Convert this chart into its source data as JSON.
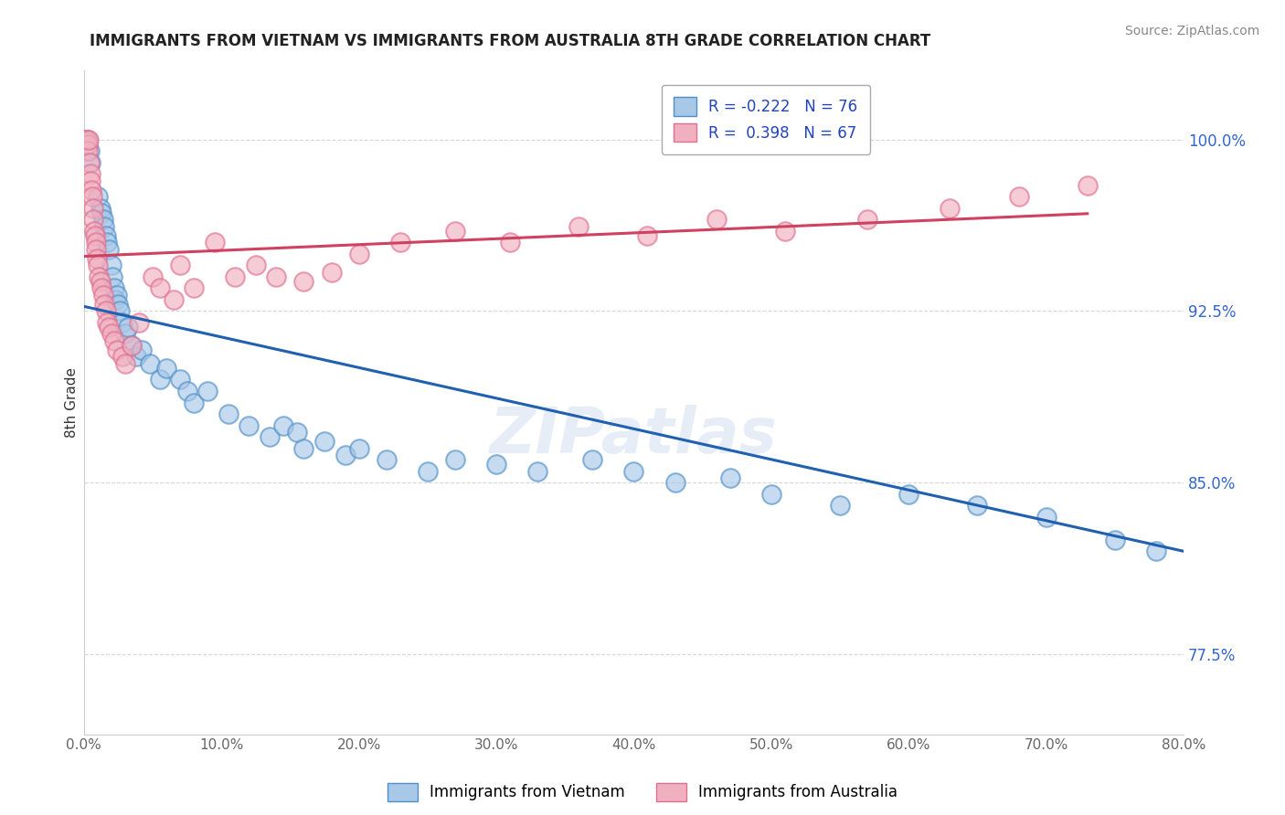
{
  "title": "IMMIGRANTS FROM VIETNAM VS IMMIGRANTS FROM AUSTRALIA 8TH GRADE CORRELATION CHART",
  "source": "Source: ZipAtlas.com",
  "ylabel": "8th Grade",
  "xlim": [
    0.0,
    80.0
  ],
  "ylim": [
    74.0,
    103.0
  ],
  "yticks": [
    77.5,
    85.0,
    92.5,
    100.0
  ],
  "ytick_labels": [
    "77.5%",
    "85.0%",
    "92.5%",
    "100.0%"
  ],
  "xticks": [
    0.0,
    10.0,
    20.0,
    30.0,
    40.0,
    50.0,
    60.0,
    70.0,
    80.0
  ],
  "xtick_labels": [
    "0.0%",
    "10.0%",
    "20.0%",
    "30.0%",
    "40.0%",
    "50.0%",
    "60.0%",
    "70.0%",
    "80.0%"
  ],
  "color_vietnam": "#a8c8e8",
  "color_australia": "#f0b0c0",
  "color_vietnam_edge": "#5090c8",
  "color_australia_edge": "#e07090",
  "color_vietnam_line": "#2060b0",
  "color_australia_line": "#d04060",
  "watermark": "ZIPatlas",
  "vietnam_line_x0": 0.0,
  "vietnam_line_y0": 92.7,
  "vietnam_line_x1": 80.0,
  "vietnam_line_y1": 82.0,
  "vietnam_scatter_x": [
    0.3,
    0.4,
    0.5,
    1.0,
    1.2,
    1.3,
    1.4,
    1.5,
    1.6,
    1.7,
    1.8,
    2.0,
    2.1,
    2.2,
    2.3,
    2.4,
    2.5,
    2.6,
    2.8,
    3.0,
    3.2,
    3.5,
    3.8,
    4.2,
    4.8,
    5.5,
    6.0,
    7.0,
    7.5,
    8.0,
    9.0,
    10.5,
    12.0,
    13.5,
    14.5,
    15.5,
    16.0,
    17.5,
    19.0,
    20.0,
    22.0,
    25.0,
    27.0,
    30.0,
    33.0,
    37.0,
    40.0,
    43.0,
    47.0,
    50.0,
    55.0,
    60.0,
    65.0,
    70.0,
    75.0,
    78.0
  ],
  "vietnam_scatter_y": [
    100.0,
    99.5,
    99.0,
    97.5,
    97.0,
    96.8,
    96.5,
    96.2,
    95.8,
    95.5,
    95.2,
    94.5,
    94.0,
    93.5,
    93.0,
    93.2,
    92.8,
    92.5,
    92.0,
    91.5,
    91.8,
    91.0,
    90.5,
    90.8,
    90.2,
    89.5,
    90.0,
    89.5,
    89.0,
    88.5,
    89.0,
    88.0,
    87.5,
    87.0,
    87.5,
    87.2,
    86.5,
    86.8,
    86.2,
    86.5,
    86.0,
    85.5,
    86.0,
    85.8,
    85.5,
    86.0,
    85.5,
    85.0,
    85.2,
    84.5,
    84.0,
    84.5,
    84.0,
    83.5,
    82.5,
    82.0
  ],
  "australia_scatter_x": [
    0.1,
    0.15,
    0.2,
    0.25,
    0.3,
    0.35,
    0.4,
    0.45,
    0.5,
    0.55,
    0.6,
    0.65,
    0.7,
    0.75,
    0.8,
    0.85,
    0.9,
    0.95,
    1.0,
    1.1,
    1.2,
    1.3,
    1.4,
    1.5,
    1.6,
    1.7,
    1.8,
    2.0,
    2.2,
    2.4,
    2.8,
    3.0,
    3.5,
    4.0,
    5.0,
    5.5,
    6.5,
    7.0,
    8.0,
    9.5,
    11.0,
    12.5,
    14.0,
    16.0,
    18.0,
    20.0,
    23.0,
    27.0,
    31.0,
    36.0,
    41.0,
    46.0,
    51.0,
    57.0,
    63.0,
    68.0,
    73.0
  ],
  "australia_scatter_y": [
    100.0,
    100.0,
    100.0,
    99.8,
    99.5,
    100.0,
    99.0,
    98.5,
    98.2,
    97.8,
    97.5,
    97.0,
    96.5,
    96.0,
    95.8,
    95.5,
    95.2,
    94.8,
    94.5,
    94.0,
    93.8,
    93.5,
    93.2,
    92.8,
    92.5,
    92.0,
    91.8,
    91.5,
    91.2,
    90.8,
    90.5,
    90.2,
    91.0,
    92.0,
    94.0,
    93.5,
    93.0,
    94.5,
    93.5,
    95.5,
    94.0,
    94.5,
    94.0,
    93.8,
    94.2,
    95.0,
    95.5,
    96.0,
    95.5,
    96.2,
    95.8,
    96.5,
    96.0,
    96.5,
    97.0,
    97.5,
    98.0
  ]
}
